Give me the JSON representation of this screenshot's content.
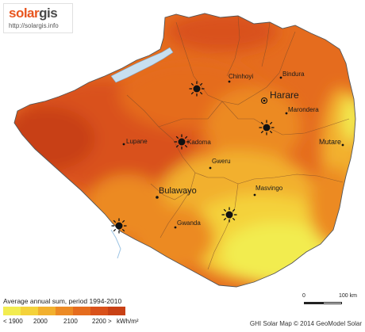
{
  "logo": {
    "brand_a": "solar",
    "brand_b": "gis",
    "url": "http://solargis.info"
  },
  "colors": {
    "brand_orange": "#e8561f",
    "lake": "#c8dff0",
    "water_blue": "#9cc4e4"
  },
  "icons": [
    "sun-icon"
  ],
  "cities": [
    {
      "name": "Harare",
      "kind": "capital"
    },
    {
      "name": "Bulawayo",
      "kind": "major"
    },
    {
      "name": "Chinhoyi",
      "kind": "town"
    },
    {
      "name": "Bindura",
      "kind": "town"
    },
    {
      "name": "Marondera",
      "kind": "town"
    },
    {
      "name": "Mutare",
      "kind": "town"
    },
    {
      "name": "Lupane",
      "kind": "town"
    },
    {
      "name": "Kadoma",
      "kind": "town"
    },
    {
      "name": "Gweru",
      "kind": "town"
    },
    {
      "name": "Masvingo",
      "kind": "town"
    },
    {
      "name": "Gwanda",
      "kind": "town"
    }
  ],
  "legend": {
    "title": "Average annual sum, period 1994-2010",
    "unit": "kWh/m²",
    "labels": [
      "< 1900",
      "2000",
      "2100",
      "2200 >"
    ],
    "colors": [
      "#f2ec50",
      "#f4d23a",
      "#f2b02e",
      "#ec8a24",
      "#e56c1e",
      "#d9511a",
      "#c84115"
    ]
  },
  "scale_bar": {
    "zero": "0",
    "max": "100 km"
  },
  "credit": "GHI Solar Map © 2014 GeoModel Solar"
}
